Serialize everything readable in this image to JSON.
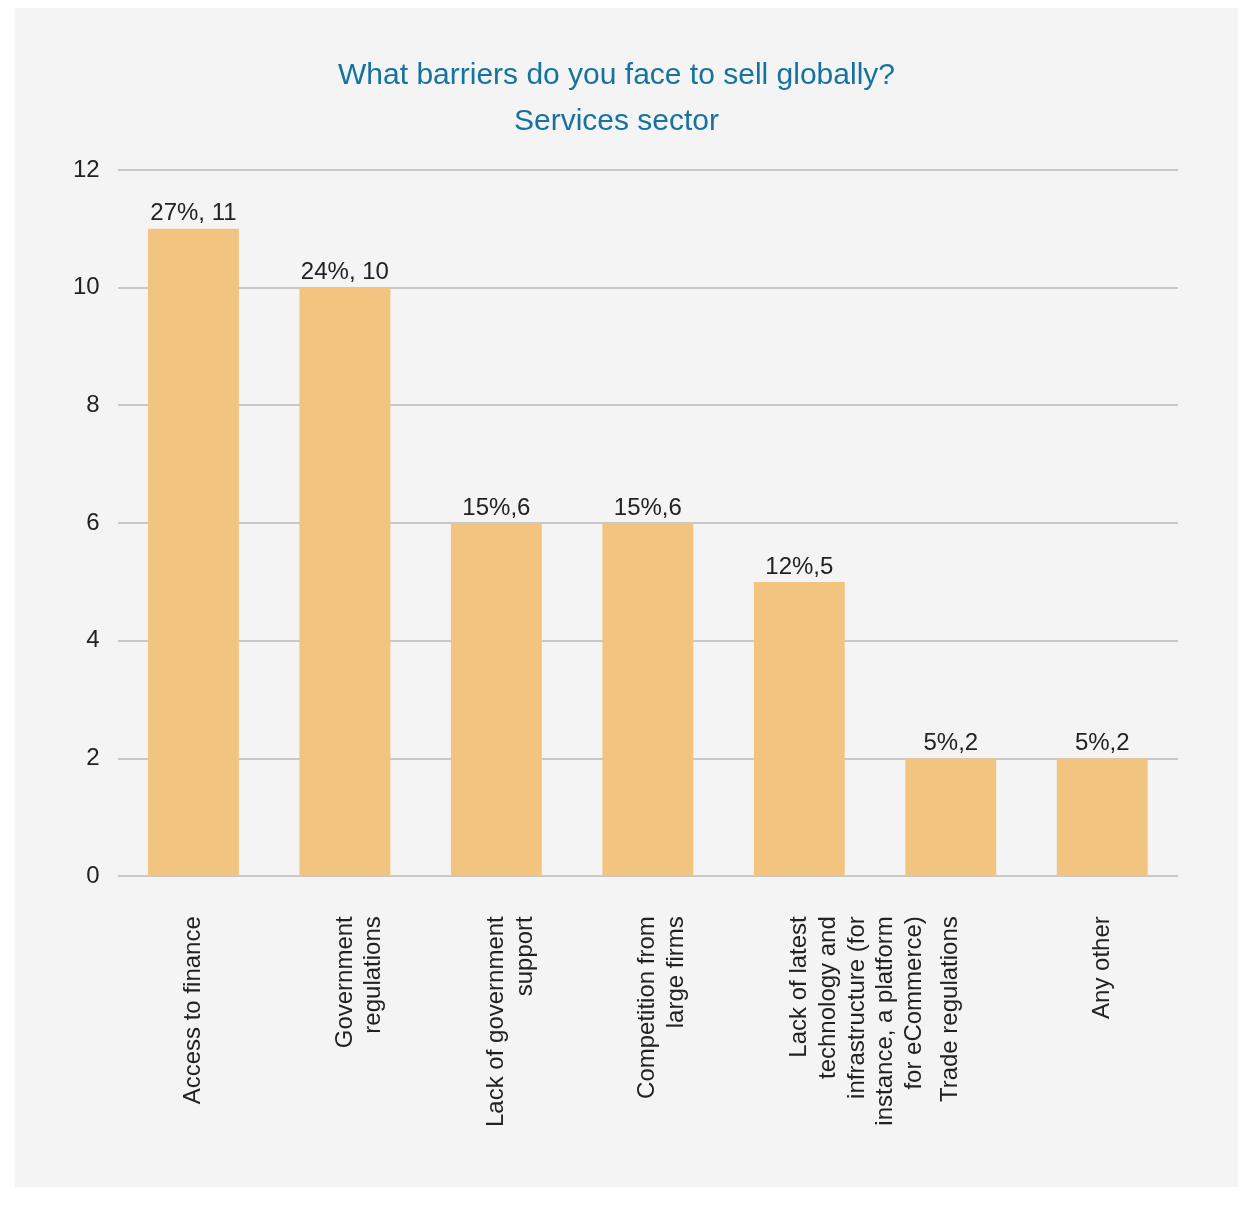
{
  "chart_data": {
    "type": "bar",
    "title": "What barriers do you face to sell globally?",
    "subtitle": "Services sector",
    "categories": [
      "Access to finance",
      "Government regulations",
      "Lack of government support",
      "Competition from large firms",
      "Lack of latest technology and infrastructure (for instance, a platform for eCommerce)",
      "Trade regulations",
      "Any other"
    ],
    "values": [
      11,
      10,
      6,
      6,
      5,
      2,
      2
    ],
    "value_labels": [
      "27%, 11",
      "24%, 10",
      "15%,6",
      "15%,6",
      "12%,5",
      "5%,2",
      "5%,2"
    ],
    "color": "#f2c480",
    "ylim": [
      0,
      12
    ],
    "yticks": [
      0,
      2,
      4,
      6,
      8,
      10,
      12
    ],
    "grid": "y",
    "legend": false
  }
}
